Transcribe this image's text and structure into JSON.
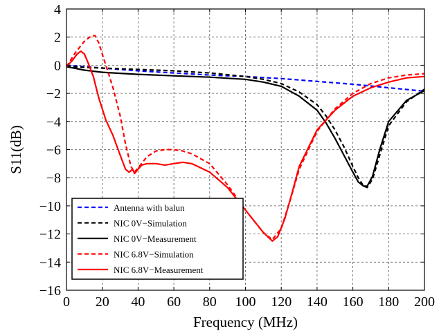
{
  "chart_data": {
    "type": "line",
    "xlabel": "Frequency (MHz)",
    "ylabel": "S11(dB)",
    "xlim": [
      0,
      200
    ],
    "ylim": [
      -16,
      4
    ],
    "xticks": [
      "0",
      "20",
      "40",
      "60",
      "80",
      "100",
      "120",
      "140",
      "160",
      "180",
      "200"
    ],
    "yticks": [
      "4",
      "2",
      "0",
      "−2",
      "−4",
      "−6",
      "−8",
      "−10",
      "−12",
      "−14",
      "−16"
    ],
    "grid": true,
    "legend_position": "bottom-left",
    "series": [
      {
        "name": "Antenna with balun",
        "color": "#0000ff",
        "dash": "dashed",
        "x": [
          0,
          10,
          20,
          40,
          60,
          80,
          100,
          120,
          140,
          160,
          180,
          200
        ],
        "y": [
          0.0,
          -0.1,
          -0.2,
          -0.4,
          -0.55,
          -0.7,
          -0.8,
          -0.95,
          -1.15,
          -1.35,
          -1.6,
          -1.85
        ]
      },
      {
        "name": "NIC 0V−Simulation",
        "color": "#000000",
        "dash": "dashed",
        "x": [
          0,
          20,
          40,
          60,
          80,
          100,
          110,
          120,
          130,
          140,
          145,
          150,
          155,
          160,
          163,
          166,
          168,
          171,
          175,
          180,
          190,
          200
        ],
        "y": [
          -0.1,
          -0.2,
          -0.3,
          -0.4,
          -0.55,
          -0.8,
          -1.0,
          -1.3,
          -1.9,
          -2.8,
          -3.6,
          -4.6,
          -5.8,
          -7.2,
          -8.0,
          -8.6,
          -8.7,
          -8.1,
          -6.4,
          -4.3,
          -2.6,
          -1.7
        ]
      },
      {
        "name": "NIC 0V−Measurement",
        "color": "#000000",
        "dash": "solid",
        "x": [
          0,
          10,
          20,
          40,
          60,
          80,
          100,
          110,
          120,
          130,
          140,
          145,
          150,
          155,
          160,
          163,
          166,
          168,
          171,
          175,
          180,
          190,
          200
        ],
        "y": [
          -0.1,
          -0.35,
          -0.5,
          -0.65,
          -0.75,
          -0.85,
          -1.0,
          -1.2,
          -1.5,
          -2.2,
          -3.2,
          -4.1,
          -5.2,
          -6.4,
          -7.6,
          -8.3,
          -8.6,
          -8.6,
          -7.9,
          -6.0,
          -4.0,
          -2.5,
          -1.8
        ]
      },
      {
        "name": "NIC 6.8V−Simulation",
        "color": "#ff0000",
        "dash": "dashed",
        "x": [
          0,
          5,
          10,
          14,
          16,
          18,
          22,
          26,
          30,
          33,
          36,
          38,
          40,
          45,
          50,
          55,
          60,
          65,
          70,
          80,
          90,
          100,
          110,
          115,
          120,
          125,
          130,
          140,
          150,
          160,
          170,
          180,
          190,
          200
        ],
        "y": [
          -0.1,
          0.9,
          1.7,
          2.1,
          2.1,
          1.6,
          0.0,
          -1.6,
          -3.6,
          -5.6,
          -7.2,
          -7.6,
          -7.3,
          -6.5,
          -6.1,
          -6.0,
          -6.0,
          -6.1,
          -6.3,
          -7.0,
          -8.5,
          -10.3,
          -11.9,
          -12.4,
          -11.6,
          -9.6,
          -7.4,
          -4.7,
          -3.1,
          -2.0,
          -1.3,
          -0.9,
          -0.7,
          -0.6
        ]
      },
      {
        "name": "NIC 6.8V−Measurement",
        "color": "#ff0000",
        "dash": "solid",
        "x": [
          0,
          3,
          6,
          8,
          10,
          12,
          15,
          18,
          22,
          26,
          30,
          33,
          35,
          37,
          38,
          40,
          42,
          45,
          50,
          55,
          60,
          65,
          70,
          80,
          90,
          100,
          110,
          115,
          118,
          122,
          126,
          130,
          140,
          150,
          160,
          170,
          180,
          190,
          200
        ],
        "y": [
          -0.1,
          0.3,
          0.8,
          1.0,
          0.8,
          0.2,
          -0.8,
          -2.3,
          -3.9,
          -5.0,
          -6.4,
          -7.4,
          -7.6,
          -7.4,
          -7.7,
          -7.4,
          -7.1,
          -7.0,
          -7.0,
          -7.1,
          -7.0,
          -6.9,
          -7.0,
          -7.6,
          -8.7,
          -10.3,
          -11.9,
          -12.5,
          -12.2,
          -10.9,
          -9.1,
          -7.2,
          -4.6,
          -3.2,
          -2.2,
          -1.6,
          -1.2,
          -0.9,
          -0.8
        ]
      }
    ]
  }
}
